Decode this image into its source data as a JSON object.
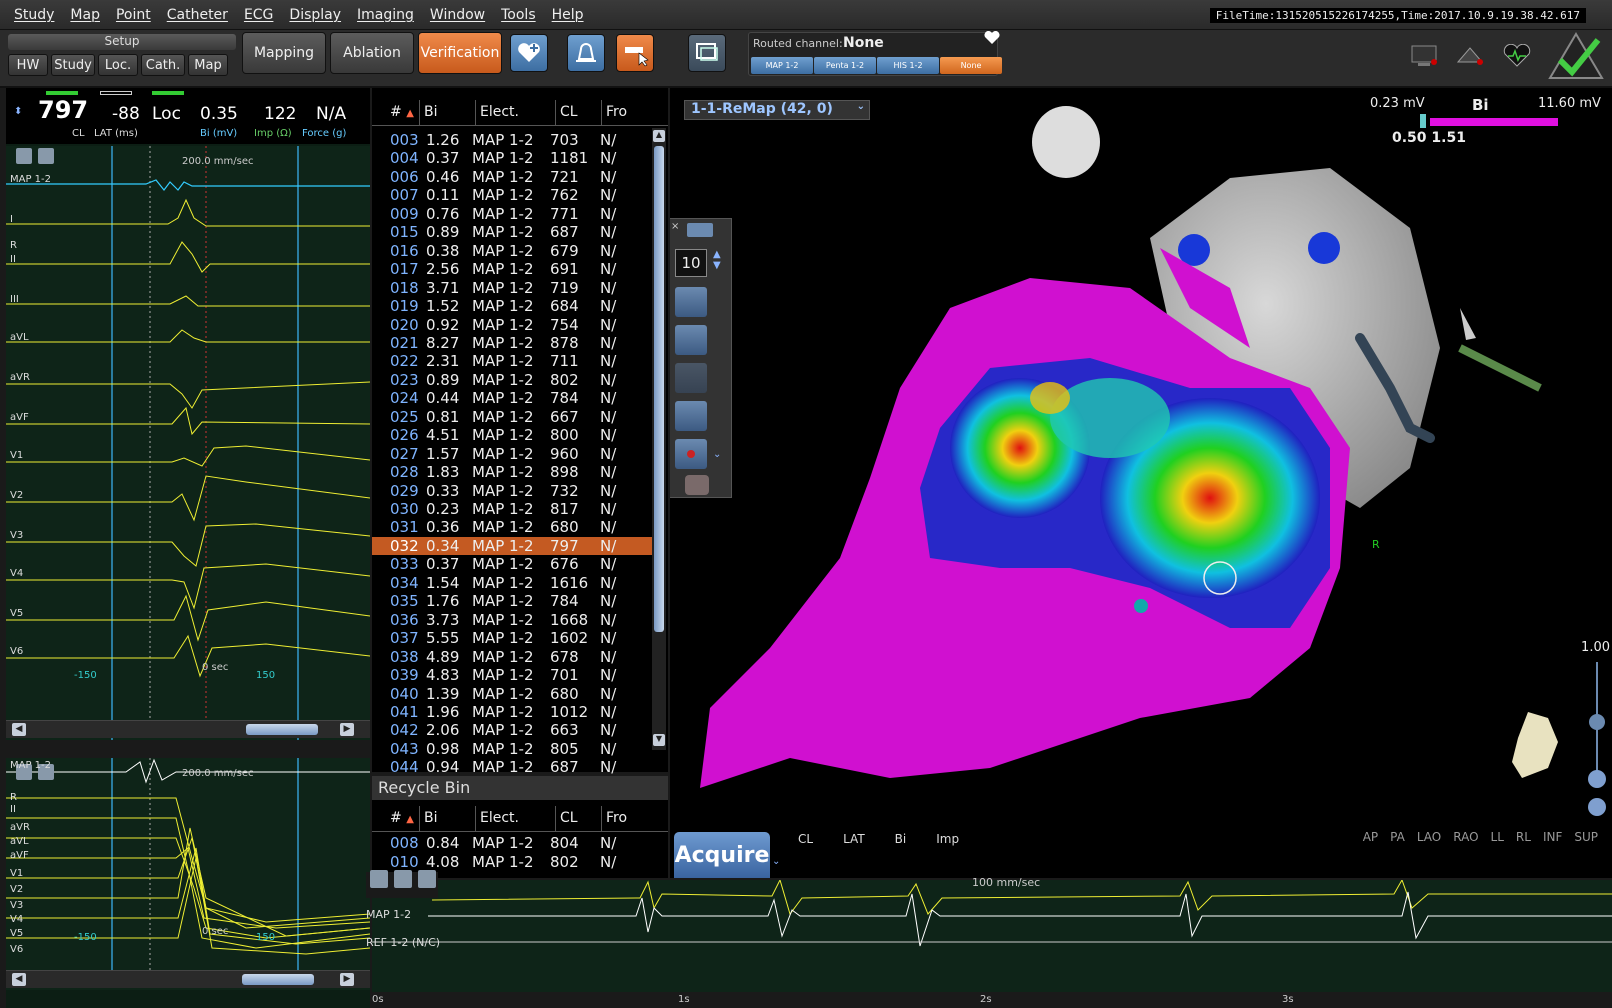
{
  "menu": [
    "Study",
    "Map",
    "Point",
    "Catheter",
    "ECG",
    "Display",
    "Imaging",
    "Window",
    "Tools",
    "Help"
  ],
  "filetime": "FileTime:131520515226174255,Time:2017.10.9.19.38.42.617",
  "setup": {
    "title": "Setup",
    "buttons": [
      "HW",
      "Study",
      "Loc.",
      "Cath.",
      "Map"
    ]
  },
  "modes": {
    "mapping": "Mapping",
    "ablation": "Ablation",
    "verification": "Verification"
  },
  "routed": {
    "label": "Routed channel:",
    "value": "None",
    "channels": [
      "MAP 1-2",
      "Penta 1-2",
      "HIS 1-2",
      "None"
    ],
    "selected": 3
  },
  "status": {
    "cl": "797",
    "cl_label": "CL",
    "lat": "-88",
    "lat_label": "LAT (ms)",
    "loc": "Loc",
    "bi": "0.35",
    "bi_label": "Bi (mV)",
    "imp": "122",
    "imp_label": "Imp (Ω)",
    "force": "N/A",
    "force_label": "Force (g)"
  },
  "ecg": {
    "speed": "200.0 mm/sec",
    "leads": [
      "MAP 1-2",
      "I",
      "II",
      "III",
      "aVL",
      "aVR",
      "aVF",
      "V1",
      "V2",
      "V3",
      "V4",
      "V5",
      "V6"
    ],
    "axis_left": "-150",
    "axis_zero": "0 sec",
    "axis_right": "150",
    "lead_r": "R"
  },
  "ecg2": {
    "speed": "200.0 mm/sec",
    "leads": [
      "MAP 1-2",
      "R",
      "II",
      "aVR",
      "aVL",
      "aVF",
      "V1",
      "V2",
      "V3",
      "V4",
      "V5",
      "V6"
    ],
    "axis_left": "-150",
    "axis_zero": "0 sec",
    "axis_right": "150"
  },
  "pointlist": {
    "headers": [
      "#",
      "Bi",
      "Elect.",
      "CL",
      "Fro"
    ],
    "selected": 17,
    "rows": [
      [
        "003",
        "1.26",
        "MAP 1-2",
        "703",
        "N/"
      ],
      [
        "004",
        "0.37",
        "MAP 1-2",
        "1181",
        "N/"
      ],
      [
        "006",
        "0.46",
        "MAP 1-2",
        "721",
        "N/"
      ],
      [
        "007",
        "0.11",
        "MAP 1-2",
        "762",
        "N/"
      ],
      [
        "009",
        "0.76",
        "MAP 1-2",
        "771",
        "N/"
      ],
      [
        "015",
        "0.89",
        "MAP 1-2",
        "687",
        "N/"
      ],
      [
        "016",
        "0.38",
        "MAP 1-2",
        "679",
        "N/"
      ],
      [
        "017",
        "2.56",
        "MAP 1-2",
        "691",
        "N/"
      ],
      [
        "018",
        "3.71",
        "MAP 1-2",
        "719",
        "N/"
      ],
      [
        "019",
        "1.52",
        "MAP 1-2",
        "684",
        "N/"
      ],
      [
        "020",
        "0.92",
        "MAP 1-2",
        "754",
        "N/"
      ],
      [
        "021",
        "8.27",
        "MAP 1-2",
        "878",
        "N/"
      ],
      [
        "022",
        "2.31",
        "MAP 1-2",
        "711",
        "N/"
      ],
      [
        "023",
        "0.89",
        "MAP 1-2",
        "802",
        "N/"
      ],
      [
        "024",
        "0.44",
        "MAP 1-2",
        "784",
        "N/"
      ],
      [
        "025",
        "0.81",
        "MAP 1-2",
        "667",
        "N/"
      ],
      [
        "026",
        "4.51",
        "MAP 1-2",
        "800",
        "N/"
      ],
      [
        "027",
        "1.57",
        "MAP 1-2",
        "960",
        "N/"
      ],
      [
        "028",
        "1.83",
        "MAP 1-2",
        "898",
        "N/"
      ],
      [
        "029",
        "0.33",
        "MAP 1-2",
        "732",
        "N/"
      ],
      [
        "030",
        "0.23",
        "MAP 1-2",
        "817",
        "N/"
      ],
      [
        "031",
        "0.36",
        "MAP 1-2",
        "680",
        "N/"
      ],
      [
        "032",
        "0.34",
        "MAP 1-2",
        "797",
        "N/"
      ],
      [
        "033",
        "0.37",
        "MAP 1-2",
        "676",
        "N/"
      ],
      [
        "034",
        "1.54",
        "MAP 1-2",
        "1616",
        "N/"
      ],
      [
        "035",
        "1.76",
        "MAP 1-2",
        "784",
        "N/"
      ],
      [
        "036",
        "3.73",
        "MAP 1-2",
        "1668",
        "N/"
      ],
      [
        "037",
        "5.55",
        "MAP 1-2",
        "1602",
        "N/"
      ],
      [
        "038",
        "4.89",
        "MAP 1-2",
        "678",
        "N/"
      ],
      [
        "039",
        "4.83",
        "MAP 1-2",
        "701",
        "N/"
      ],
      [
        "040",
        "1.39",
        "MAP 1-2",
        "680",
        "N/"
      ],
      [
        "041",
        "1.96",
        "MAP 1-2",
        "1012",
        "N/"
      ],
      [
        "042",
        "2.06",
        "MAP 1-2",
        "663",
        "N/"
      ],
      [
        "043",
        "0.98",
        "MAP 1-2",
        "805",
        "N/"
      ],
      [
        "044",
        "0.94",
        "MAP 1-2",
        "687",
        "N/"
      ]
    ]
  },
  "recycle": {
    "title": "Recycle Bin",
    "headers": [
      "#",
      "Bi",
      "Elect.",
      "CL",
      "Fro"
    ],
    "rows": [
      [
        "008",
        "0.84",
        "MAP 1-2",
        "804",
        "N/"
      ],
      [
        "010",
        "4.08",
        "MAP 1-2",
        "802",
        "N/"
      ]
    ]
  },
  "map": {
    "title": "1-1-ReMap (42, 0)",
    "legend_lo": "0.23 mV",
    "legend_type": "Bi",
    "legend_hi": "11.60 mV",
    "legend_marks": "0.50  1.51",
    "tool_count": "10",
    "zoom": "1.00",
    "views": [
      "AP",
      "PA",
      "LAO",
      "RAO",
      "LL",
      "RL",
      "INF",
      "SUP"
    ],
    "r_label": "R",
    "acquire": "Acquire",
    "acq_cols": [
      "CL",
      "LAT",
      "Bi",
      "Imp"
    ],
    "colors": {
      "accent": "#c85a1c",
      "map_low": "#e010e0"
    }
  },
  "strip": {
    "speed": "100 mm/sec",
    "ch1": "MAP 1-2",
    "ch2": "REF 1-2 (N/C)",
    "ticks": [
      "0s",
      "1s",
      "2s",
      "3s"
    ]
  }
}
